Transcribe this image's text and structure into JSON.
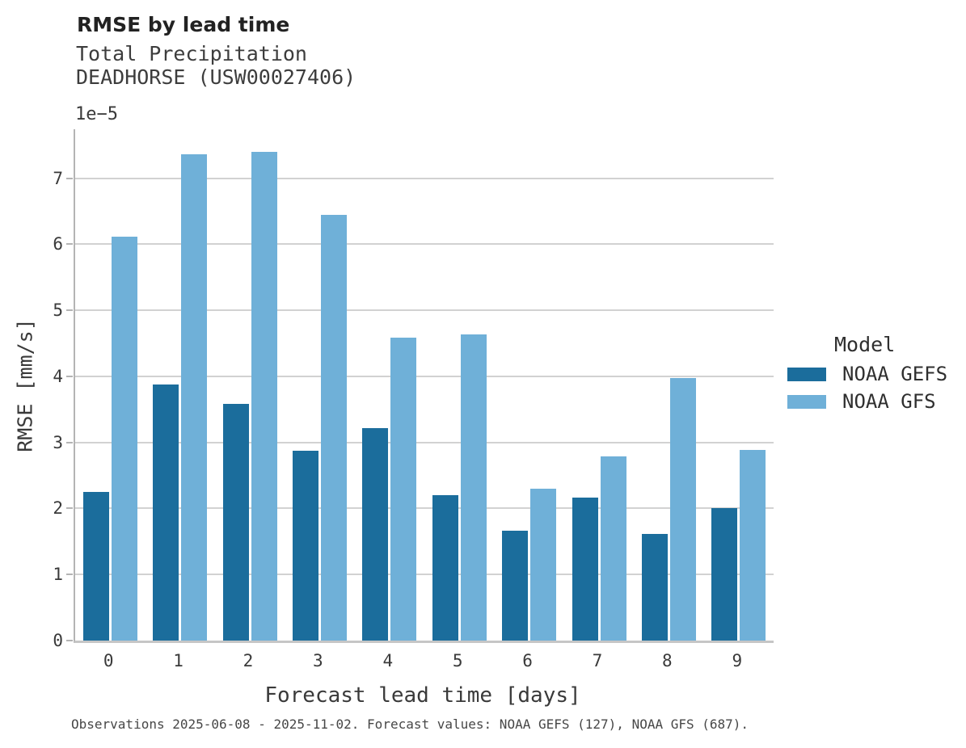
{
  "header": {
    "title": "RMSE by lead time",
    "subtitle_line1": "Total Precipitation",
    "subtitle_line2": "DEADHORSE (USW00027406)"
  },
  "chart_data": {
    "type": "bar",
    "title": "RMSE by lead time",
    "subtitle": [
      "Total Precipitation",
      "DEADHORSE (USW00027406)"
    ],
    "categories": [
      "0",
      "1",
      "2",
      "3",
      "4",
      "5",
      "6",
      "7",
      "8",
      "9"
    ],
    "series": [
      {
        "name": "NOAA GEFS",
        "color": "#1b6d9c",
        "values": [
          2.25,
          3.88,
          3.58,
          2.87,
          3.21,
          2.2,
          1.66,
          2.16,
          1.62,
          2.0
        ]
      },
      {
        "name": "NOAA GFS",
        "color": "#6fb0d8",
        "values": [
          6.11,
          7.36,
          7.4,
          6.45,
          4.59,
          4.63,
          2.3,
          2.79,
          3.98,
          2.88
        ]
      }
    ],
    "value_scale": "1e-5",
    "y_offset_label": "1e−5",
    "xlabel": "Forecast lead time [days]",
    "ylabel": "RMSE [mm/s]",
    "yticks": [
      0,
      1,
      2,
      3,
      4,
      5,
      6,
      7
    ],
    "ylim": [
      0,
      7.74
    ],
    "grid": "horizontal",
    "legend_title": "Model",
    "legend_position": "right",
    "caption": "Observations 2025-06-08 - 2025-11-02. Forecast values: NOAA GEFS (127), NOAA GFS (687)."
  },
  "legend": {
    "title": "Model",
    "entries": [
      {
        "label": "NOAA GEFS",
        "color": "#1b6d9c"
      },
      {
        "label": "NOAA GFS",
        "color": "#6fb0d8"
      }
    ]
  },
  "colors": {
    "gefs_bar": "#1b6d9c",
    "gfs_bar": "#6fb0d8",
    "gridline": "#d2d2d2",
    "spine": "#b4b4b4",
    "baseline": "#c6c6c6",
    "text": "#3a3a3a",
    "caption": "#474747"
  }
}
